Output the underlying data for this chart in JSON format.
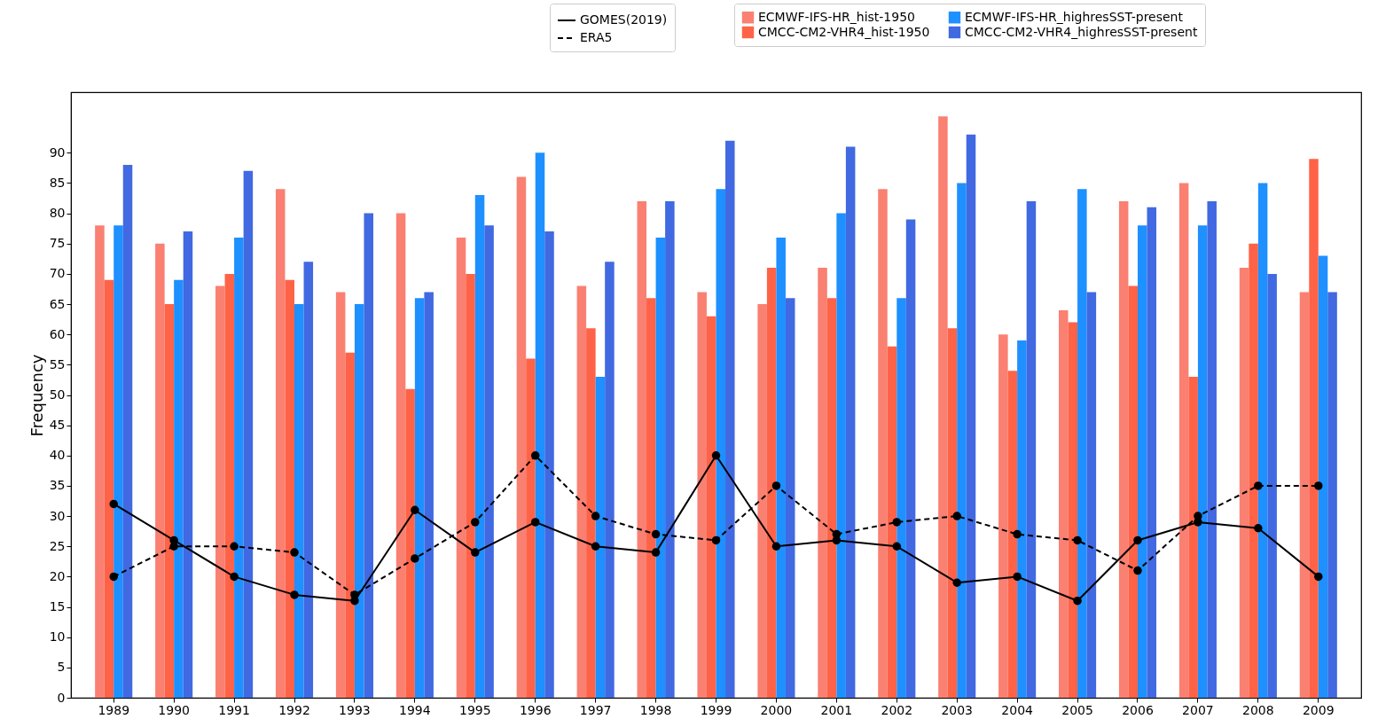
{
  "chart_data": {
    "type": "bar",
    "ylabel": "Frequency",
    "categories": [
      "1989",
      "1990",
      "1991",
      "1992",
      "1993",
      "1994",
      "1995",
      "1996",
      "1997",
      "1998",
      "1999",
      "2000",
      "2001",
      "2002",
      "2003",
      "2004",
      "2005",
      "2006",
      "2007",
      "2008",
      "2009"
    ],
    "ylim": [
      0,
      100
    ],
    "yticks": [
      0,
      5,
      10,
      15,
      20,
      25,
      30,
      35,
      40,
      45,
      50,
      55,
      60,
      65,
      70,
      75,
      80,
      85,
      90
    ],
    "grid": false,
    "legend": "top right",
    "marker": "circle",
    "series": [
      {
        "name": "GOMES(2019)",
        "type": "line",
        "line_style": "solid",
        "color": "#000000",
        "values": [
          32,
          26,
          20,
          17,
          16,
          31,
          24,
          29,
          25,
          24,
          40,
          25,
          26,
          25,
          19,
          20,
          16,
          26,
          29,
          28,
          20
        ]
      },
      {
        "name": "ERA5",
        "type": "line",
        "line_style": "dashed",
        "color": "#000000",
        "values": [
          20,
          25,
          25,
          24,
          17,
          23,
          29,
          40,
          30,
          27,
          26,
          35,
          27,
          29,
          30,
          27,
          26,
          21,
          30,
          35,
          35
        ]
      },
      {
        "name": "ECMWF-IFS-HR_hist-1950",
        "type": "bar",
        "color": "#fa8072",
        "values": [
          78,
          75,
          68,
          84,
          67,
          80,
          76,
          86,
          68,
          82,
          67,
          65,
          71,
          84,
          96,
          60,
          64,
          82,
          85,
          71,
          67
        ]
      },
      {
        "name": "CMCC-CM2-VHR4_hist-1950",
        "type": "bar",
        "color": "#ff6347",
        "values": [
          69,
          65,
          70,
          69,
          57,
          51,
          70,
          56,
          61,
          66,
          63,
          71,
          66,
          58,
          61,
          54,
          62,
          68,
          53,
          75,
          89
        ]
      },
      {
        "name": "ECMWF-IFS-HR_highresSST-present",
        "type": "bar",
        "color": "#1e90ff",
        "values": [
          78,
          69,
          76,
          65,
          65,
          66,
          83,
          90,
          53,
          76,
          84,
          76,
          80,
          66,
          85,
          59,
          84,
          78,
          78,
          85,
          73
        ]
      },
      {
        "name": "CMCC-CM2-VHR4_highresSST-present",
        "type": "bar",
        "color": "#4169e1",
        "values": [
          88,
          77,
          87,
          72,
          80,
          67,
          78,
          77,
          72,
          82,
          92,
          66,
          91,
          79,
          93,
          82,
          67,
          81,
          82,
          70,
          67
        ]
      }
    ]
  }
}
